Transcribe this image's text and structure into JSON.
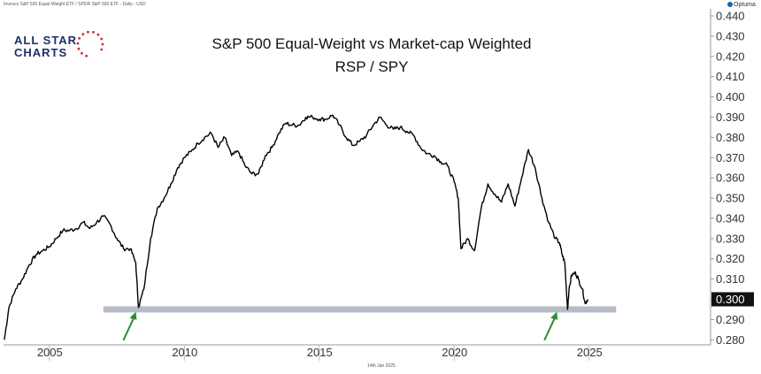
{
  "header": {
    "source": "Invesco S&P 500 Equal Weight ETF / SPDR S&P 500 ETF - Daily - USD",
    "brand": "Optuma"
  },
  "logo": {
    "line1": "ALL STAR",
    "line2": "CHARTS"
  },
  "footer": {
    "date": "14th Jan 2025"
  },
  "colors": {
    "line": "#000000",
    "support_band": "#b4bcc6",
    "arrow": "#2e8b2e",
    "last_value_bg": "#111111",
    "logo_text": "#1b2f6a",
    "logo_stars": "#d7263d"
  },
  "chart_data": {
    "type": "line",
    "title": "S&P 500 Equal-Weight vs Market-cap Weighted",
    "subtitle": "RSP / SPY",
    "xlabel": "",
    "ylabel": "",
    "xlim": [
      2003.3,
      2029.5
    ],
    "ylim": [
      0.2775,
      0.4435
    ],
    "x_ticks": [
      2005,
      2010,
      2015,
      2020,
      2025
    ],
    "y_ticks": [
      0.28,
      0.29,
      0.3,
      0.31,
      0.32,
      0.33,
      0.34,
      0.35,
      0.36,
      0.37,
      0.38,
      0.39,
      0.4,
      0.41,
      0.42,
      0.43,
      0.44
    ],
    "y_tick_format": "0.000",
    "last_value": "0.300",
    "support_level": {
      "y": 0.295,
      "x_start": 2007.0,
      "x_end": 2026.0
    },
    "arrows": [
      {
        "x": 2008.2,
        "y": 0.2955
      },
      {
        "x": 2023.8,
        "y": 0.2955
      }
    ],
    "series": [
      {
        "x": [
          2003.33,
          2003.5,
          2003.75,
          2004.0,
          2004.25,
          2004.5,
          2004.75,
          2005.0,
          2005.25,
          2005.5,
          2005.75,
          2006.0,
          2006.25,
          2006.5,
          2006.75,
          2007.0,
          2007.25,
          2007.5,
          2007.75,
          2008.0,
          2008.2,
          2008.3,
          2008.5,
          2008.75,
          2009.0,
          2009.25,
          2009.5,
          2009.75,
          2010.0,
          2010.25,
          2010.5,
          2010.75,
          2011.0,
          2011.25,
          2011.5,
          2011.75,
          2012.0,
          2012.25,
          2012.5,
          2012.75,
          2013.0,
          2013.25,
          2013.5,
          2013.75,
          2014.0,
          2014.25,
          2014.5,
          2014.75,
          2015.0,
          2015.25,
          2015.5,
          2015.75,
          2016.0,
          2016.25,
          2016.5,
          2016.75,
          2017.0,
          2017.25,
          2017.5,
          2017.75,
          2018.0,
          2018.25,
          2018.5,
          2018.75,
          2019.0,
          2019.25,
          2019.5,
          2019.75,
          2020.0,
          2020.15,
          2020.25,
          2020.5,
          2020.75,
          2021.0,
          2021.25,
          2021.5,
          2021.75,
          2022.0,
          2022.25,
          2022.5,
          2022.75,
          2023.0,
          2023.25,
          2023.5,
          2023.75,
          2023.9,
          2024.0,
          2024.1,
          2024.2,
          2024.25,
          2024.35,
          2024.5,
          2024.6,
          2024.75,
          2024.85,
          2024.95
        ],
        "y": [
          0.28,
          0.296,
          0.305,
          0.31,
          0.317,
          0.322,
          0.324,
          0.326,
          0.33,
          0.334,
          0.334,
          0.335,
          0.338,
          0.335,
          0.338,
          0.341,
          0.337,
          0.33,
          0.325,
          0.325,
          0.318,
          0.296,
          0.305,
          0.33,
          0.345,
          0.35,
          0.357,
          0.365,
          0.37,
          0.373,
          0.377,
          0.38,
          0.382,
          0.375,
          0.38,
          0.371,
          0.373,
          0.366,
          0.362,
          0.362,
          0.371,
          0.375,
          0.382,
          0.387,
          0.386,
          0.386,
          0.39,
          0.39,
          0.389,
          0.389,
          0.391,
          0.386,
          0.38,
          0.376,
          0.378,
          0.381,
          0.386,
          0.39,
          0.386,
          0.384,
          0.385,
          0.383,
          0.381,
          0.375,
          0.372,
          0.371,
          0.368,
          0.366,
          0.358,
          0.35,
          0.325,
          0.33,
          0.324,
          0.345,
          0.357,
          0.352,
          0.348,
          0.357,
          0.346,
          0.36,
          0.374,
          0.365,
          0.35,
          0.338,
          0.33,
          0.328,
          0.322,
          0.318,
          0.295,
          0.304,
          0.312,
          0.313,
          0.31,
          0.305,
          0.298,
          0.3
        ]
      }
    ]
  }
}
